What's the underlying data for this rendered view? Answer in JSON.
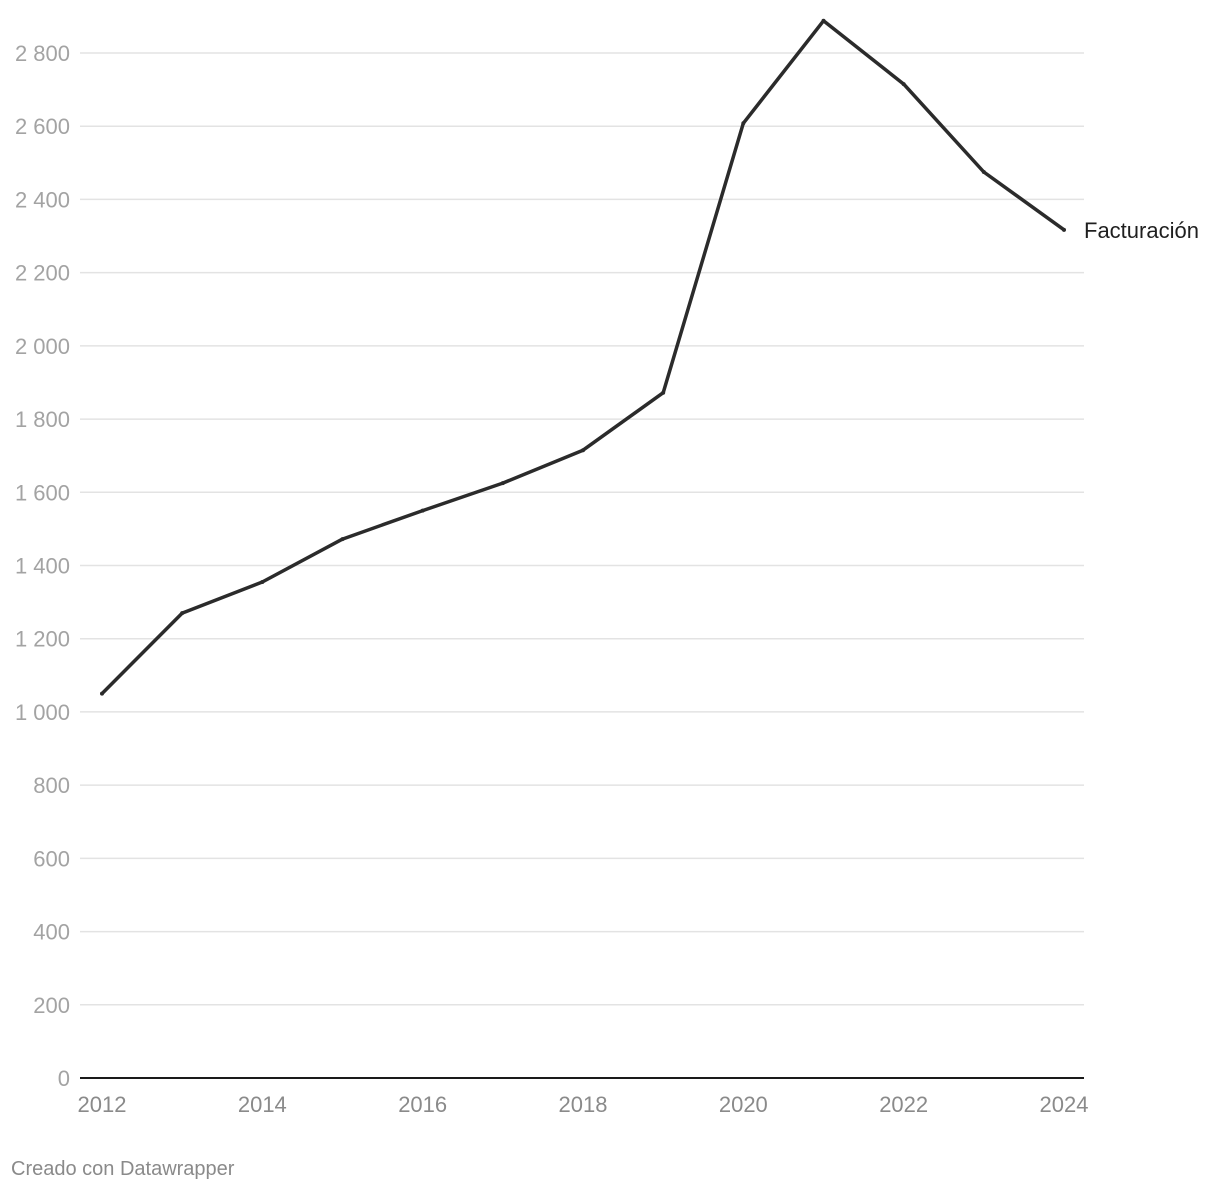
{
  "chart_data": {
    "type": "line",
    "title": "",
    "xlabel": "",
    "ylabel": "",
    "x": [
      2012,
      2013,
      2014,
      2015,
      2016,
      2017,
      2018,
      2019,
      2020,
      2021,
      2022,
      2023,
      2024
    ],
    "series": [
      {
        "name": "Facturación",
        "values": [
          1050,
          1270,
          1355,
          1472,
          1550,
          1625,
          1715,
          1872,
          2608,
          2888,
          2715,
          2475,
          2317
        ],
        "color": "#2b2b2b"
      }
    ],
    "xlim": [
      2012,
      2024
    ],
    "ylim": [
      0,
      2800
    ],
    "yticks": [
      0,
      200,
      400,
      600,
      800,
      1000,
      1200,
      1400,
      1600,
      1800,
      2000,
      2200,
      2400,
      2600,
      2800
    ],
    "ytick_labels": [
      "0",
      "200",
      "400",
      "600",
      "800",
      "1 000",
      "1 200",
      "1 400",
      "1 600",
      "1 800",
      "2 000",
      "2 200",
      "2 400",
      "2 600",
      "2 800"
    ],
    "xticks": [
      2012,
      2014,
      2016,
      2018,
      2020,
      2022,
      2024
    ],
    "xtick_labels": [
      "2012",
      "2014",
      "2016",
      "2018",
      "2020",
      "2022",
      "2024"
    ],
    "grid": true,
    "legend": "direct label at line end"
  },
  "footer": {
    "credit": "Creado con Datawrapper"
  }
}
